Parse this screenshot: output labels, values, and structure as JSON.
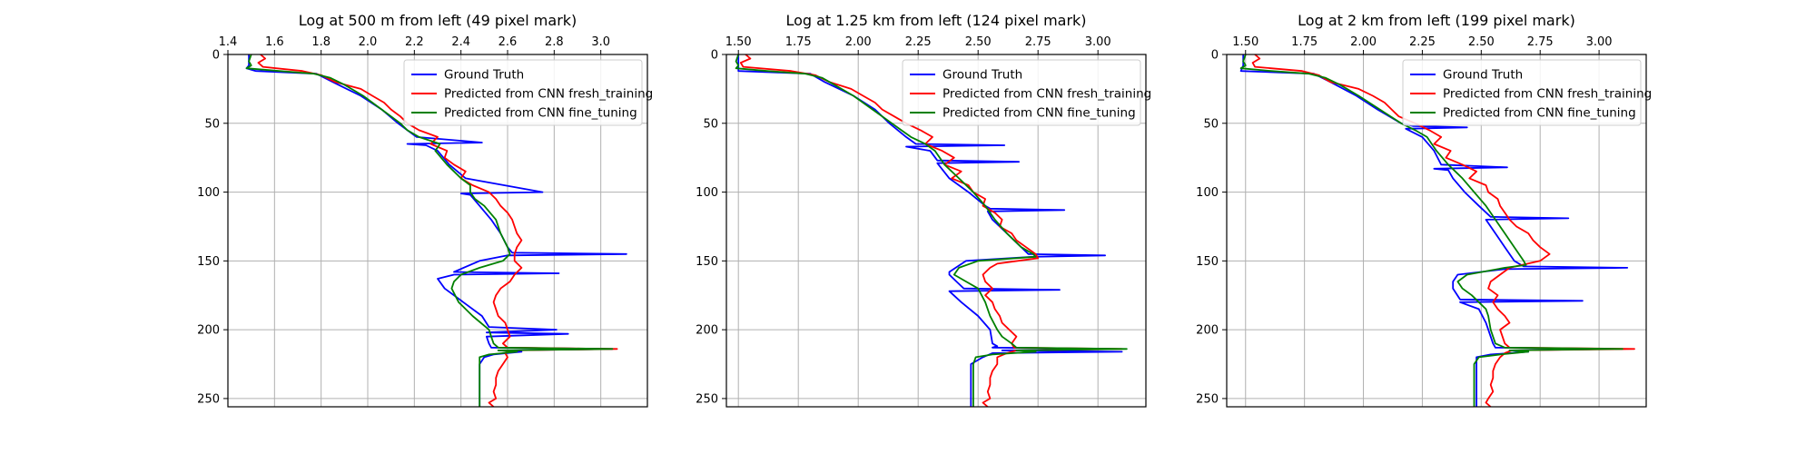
{
  "chart_data": [
    {
      "type": "line",
      "title": "Log at 500 m from left (49 pixel mark)",
      "x_orientation": "top",
      "y_inverted": true,
      "grid": true,
      "legend": "upper right",
      "xlim": [
        1.4,
        3.2
      ],
      "ylim": [
        0,
        256
      ],
      "xticks": [
        1.4,
        1.6,
        1.8,
        2.0,
        2.2,
        2.4,
        2.6,
        2.8,
        3.0
      ],
      "xtick_labels": [
        "1.4",
        "1.6",
        "1.8",
        "2.0",
        "2.2",
        "2.4",
        "2.6",
        "2.8",
        "3.0"
      ],
      "yticks": [
        0,
        50,
        100,
        150,
        200,
        250
      ],
      "ytick_labels": [
        "0",
        "50",
        "100",
        "150",
        "200",
        "250"
      ],
      "series": [
        {
          "name": "Ground Truth",
          "color": "#0000ff",
          "depth": [
            0,
            8,
            10,
            12,
            14,
            20,
            30,
            40,
            50,
            55,
            60,
            64,
            65,
            66,
            70,
            80,
            90,
            100,
            101,
            102,
            110,
            120,
            130,
            140,
            144,
            145,
            146,
            150,
            158,
            159,
            160,
            163,
            170,
            180,
            190,
            198,
            200,
            202,
            203,
            205,
            210,
            213,
            214,
            215,
            216,
            218,
            220,
            225,
            230,
            240,
            250,
            256
          ],
          "value": [
            1.49,
            1.49,
            1.48,
            1.52,
            1.78,
            1.85,
            1.97,
            2.06,
            2.13,
            2.17,
            2.21,
            2.49,
            2.17,
            2.25,
            2.3,
            2.35,
            2.42,
            2.75,
            2.4,
            2.44,
            2.48,
            2.53,
            2.57,
            2.6,
            2.62,
            3.11,
            2.6,
            2.48,
            2.37,
            2.82,
            2.37,
            2.3,
            2.33,
            2.41,
            2.49,
            2.52,
            2.81,
            2.51,
            2.86,
            2.51,
            2.52,
            2.53,
            3.05,
            2.56,
            2.66,
            2.54,
            2.5,
            2.48,
            2.48,
            2.48,
            2.48,
            2.48
          ]
        },
        {
          "name": "Predicted from CNN fresh_training",
          "color": "#ff0000",
          "depth": [
            0,
            3,
            6,
            9,
            12,
            15,
            20,
            25,
            30,
            35,
            40,
            45,
            50,
            55,
            60,
            65,
            70,
            75,
            80,
            85,
            90,
            95,
            100,
            105,
            110,
            115,
            120,
            125,
            130,
            135,
            140,
            145,
            150,
            155,
            160,
            165,
            170,
            175,
            180,
            185,
            190,
            195,
            200,
            205,
            210,
            213,
            214,
            215,
            217,
            220,
            225,
            230,
            235,
            240,
            245,
            250,
            253,
            256
          ],
          "value": [
            1.54,
            1.56,
            1.53,
            1.55,
            1.72,
            1.8,
            1.86,
            1.97,
            2.02,
            2.07,
            2.1,
            2.14,
            2.17,
            2.22,
            2.3,
            2.27,
            2.34,
            2.33,
            2.37,
            2.42,
            2.4,
            2.45,
            2.52,
            2.55,
            2.57,
            2.6,
            2.62,
            2.63,
            2.64,
            2.66,
            2.64,
            2.63,
            2.63,
            2.66,
            2.63,
            2.61,
            2.57,
            2.55,
            2.54,
            2.55,
            2.56,
            2.59,
            2.6,
            2.61,
            2.58,
            2.6,
            3.07,
            2.62,
            2.59,
            2.6,
            2.58,
            2.56,
            2.55,
            2.55,
            2.54,
            2.55,
            2.52,
            2.54
          ]
        },
        {
          "name": "Predicted from CNN fine_tuning",
          "color": "#008000",
          "depth": [
            0,
            5,
            8,
            10,
            12,
            14,
            17,
            22,
            30,
            40,
            50,
            55,
            60,
            65,
            70,
            80,
            90,
            95,
            100,
            105,
            110,
            120,
            130,
            140,
            145,
            150,
            155,
            160,
            165,
            170,
            180,
            190,
            200,
            205,
            210,
            213,
            214,
            215,
            216,
            218,
            220,
            225,
            230,
            240,
            250,
            256
          ],
          "value": [
            1.5,
            1.49,
            1.5,
            1.48,
            1.62,
            1.77,
            1.84,
            1.9,
            1.98,
            2.06,
            2.14,
            2.17,
            2.22,
            2.31,
            2.29,
            2.34,
            2.4,
            2.44,
            2.44,
            2.46,
            2.5,
            2.55,
            2.57,
            2.6,
            2.61,
            2.58,
            2.48,
            2.4,
            2.37,
            2.36,
            2.39,
            2.45,
            2.52,
            2.53,
            2.54,
            2.56,
            3.05,
            2.56,
            2.64,
            2.52,
            2.48,
            2.48,
            2.48,
            2.48,
            2.48,
            2.48
          ]
        }
      ]
    },
    {
      "type": "line",
      "title": "Log at 1.25 km from left (124 pixel mark)",
      "x_orientation": "top",
      "y_inverted": true,
      "grid": true,
      "legend": "upper right",
      "xlim": [
        1.45,
        3.2
      ],
      "ylim": [
        0,
        256
      ],
      "xticks": [
        1.5,
        1.75,
        2.0,
        2.25,
        2.5,
        2.75,
        3.0
      ],
      "xtick_labels": [
        "1.50",
        "1.75",
        "2.00",
        "2.25",
        "2.50",
        "2.75",
        "3.00"
      ],
      "yticks": [
        0,
        50,
        100,
        150,
        200,
        250
      ],
      "ytick_labels": [
        "0",
        "50",
        "100",
        "150",
        "200",
        "250"
      ],
      "series": [
        {
          "name": "Ground Truth",
          "color": "#0000ff",
          "depth": [
            0,
            8,
            12,
            14,
            20,
            30,
            40,
            50,
            60,
            65,
            66,
            67,
            70,
            77,
            78,
            79,
            90,
            100,
            110,
            112,
            113,
            114,
            120,
            130,
            140,
            145,
            146,
            147,
            150,
            158,
            160,
            165,
            170,
            171,
            172,
            180,
            190,
            200,
            210,
            212,
            213,
            214,
            215,
            216,
            217,
            220,
            225,
            230,
            240,
            250,
            256
          ],
          "value": [
            1.5,
            1.5,
            1.5,
            1.8,
            1.86,
            1.98,
            2.07,
            2.13,
            2.2,
            2.24,
            2.61,
            2.2,
            2.3,
            2.33,
            2.67,
            2.33,
            2.38,
            2.46,
            2.53,
            2.55,
            2.86,
            2.54,
            2.56,
            2.62,
            2.68,
            2.71,
            3.03,
            2.73,
            2.45,
            2.38,
            2.38,
            2.41,
            2.44,
            2.84,
            2.38,
            2.43,
            2.5,
            2.55,
            2.56,
            2.58,
            2.56,
            3.05,
            2.6,
            3.1,
            2.56,
            2.52,
            2.47,
            2.47,
            2.47,
            2.47,
            2.47
          ]
        },
        {
          "name": "Predicted from CNN fresh_training",
          "color": "#ff0000",
          "depth": [
            0,
            3,
            6,
            9,
            12,
            15,
            20,
            25,
            30,
            35,
            40,
            45,
            50,
            55,
            60,
            65,
            70,
            75,
            80,
            85,
            90,
            95,
            100,
            105,
            110,
            115,
            120,
            125,
            130,
            135,
            140,
            145,
            148,
            152,
            155,
            160,
            165,
            170,
            175,
            180,
            185,
            190,
            195,
            200,
            205,
            210,
            213,
            214,
            215,
            217,
            220,
            225,
            230,
            235,
            240,
            245,
            250,
            253,
            256
          ],
          "value": [
            1.53,
            1.55,
            1.51,
            1.52,
            1.72,
            1.82,
            1.88,
            1.97,
            2.02,
            2.07,
            2.1,
            2.15,
            2.2,
            2.26,
            2.31,
            2.28,
            2.35,
            2.4,
            2.36,
            2.43,
            2.39,
            2.46,
            2.48,
            2.53,
            2.52,
            2.57,
            2.6,
            2.59,
            2.64,
            2.66,
            2.7,
            2.74,
            2.75,
            2.58,
            2.55,
            2.52,
            2.53,
            2.56,
            2.53,
            2.56,
            2.57,
            2.59,
            2.6,
            2.63,
            2.66,
            2.64,
            2.65,
            3.1,
            2.66,
            2.62,
            2.58,
            2.58,
            2.56,
            2.55,
            2.55,
            2.54,
            2.55,
            2.52,
            2.54
          ]
        },
        {
          "name": "Predicted from CNN fine_tuning",
          "color": "#008000",
          "depth": [
            0,
            5,
            8,
            10,
            12,
            14,
            17,
            22,
            30,
            40,
            50,
            55,
            60,
            65,
            70,
            80,
            90,
            100,
            110,
            120,
            130,
            140,
            145,
            147,
            150,
            155,
            160,
            165,
            170,
            180,
            190,
            200,
            205,
            210,
            213,
            214,
            215,
            216,
            218,
            220,
            225,
            230,
            240,
            250,
            256
          ],
          "value": [
            1.5,
            1.49,
            1.5,
            1.49,
            1.62,
            1.78,
            1.85,
            1.9,
            1.98,
            2.06,
            2.14,
            2.18,
            2.22,
            2.28,
            2.32,
            2.36,
            2.42,
            2.48,
            2.53,
            2.57,
            2.62,
            2.68,
            2.73,
            2.74,
            2.5,
            2.42,
            2.4,
            2.45,
            2.5,
            2.53,
            2.55,
            2.58,
            2.6,
            2.64,
            2.66,
            3.12,
            2.66,
            2.74,
            2.56,
            2.49,
            2.48,
            2.48,
            2.48,
            2.48,
            2.48
          ]
        }
      ]
    },
    {
      "type": "line",
      "title": "Log at 2 km from left (199 pixel mark)",
      "x_orientation": "top",
      "y_inverted": true,
      "grid": true,
      "legend": "upper right",
      "xlim": [
        1.42,
        3.2
      ],
      "ylim": [
        0,
        256
      ],
      "xticks": [
        1.5,
        1.75,
        2.0,
        2.25,
        2.5,
        2.75,
        3.0
      ],
      "xtick_labels": [
        "1.50",
        "1.75",
        "2.00",
        "2.25",
        "2.50",
        "2.75",
        "3.00"
      ],
      "yticks": [
        0,
        50,
        100,
        150,
        200,
        250
      ],
      "ytick_labels": [
        "0",
        "50",
        "100",
        "150",
        "200",
        "250"
      ],
      "series": [
        {
          "name": "Ground Truth",
          "color": "#0000ff",
          "depth": [
            0,
            8,
            12,
            14,
            20,
            30,
            40,
            50,
            52,
            53,
            54,
            60,
            70,
            80,
            82,
            83,
            84,
            90,
            100,
            110,
            118,
            119,
            120,
            130,
            140,
            150,
            154,
            155,
            156,
            160,
            165,
            170,
            178,
            179,
            180,
            185,
            195,
            200,
            210,
            213,
            214,
            215,
            216,
            218,
            220,
            225,
            230,
            240,
            250,
            256
          ],
          "value": [
            1.49,
            1.49,
            1.48,
            1.79,
            1.86,
            1.97,
            2.06,
            2.16,
            2.21,
            2.44,
            2.18,
            2.25,
            2.3,
            2.33,
            2.61,
            2.3,
            2.36,
            2.38,
            2.43,
            2.49,
            2.54,
            2.87,
            2.52,
            2.56,
            2.6,
            2.64,
            2.68,
            3.12,
            2.6,
            2.4,
            2.38,
            2.38,
            2.41,
            2.93,
            2.41,
            2.49,
            2.52,
            2.53,
            2.55,
            2.56,
            3.05,
            2.62,
            2.7,
            2.54,
            2.48,
            2.48,
            2.48,
            2.48,
            2.48,
            2.48
          ]
        },
        {
          "name": "Predicted from CNN fresh_training",
          "color": "#ff0000",
          "depth": [
            0,
            3,
            6,
            9,
            12,
            15,
            20,
            25,
            30,
            35,
            40,
            45,
            50,
            55,
            60,
            65,
            70,
            75,
            80,
            85,
            90,
            95,
            100,
            105,
            110,
            115,
            120,
            125,
            130,
            135,
            140,
            145,
            150,
            155,
            160,
            165,
            170,
            175,
            180,
            185,
            190,
            195,
            200,
            205,
            210,
            213,
            214,
            215,
            217,
            220,
            225,
            230,
            235,
            240,
            245,
            250,
            253,
            256
          ],
          "value": [
            1.54,
            1.56,
            1.53,
            1.54,
            1.74,
            1.81,
            1.86,
            1.98,
            2.04,
            2.09,
            2.12,
            2.15,
            2.22,
            2.28,
            2.33,
            2.3,
            2.37,
            2.35,
            2.42,
            2.48,
            2.45,
            2.52,
            2.53,
            2.57,
            2.58,
            2.6,
            2.62,
            2.65,
            2.7,
            2.72,
            2.75,
            2.79,
            2.75,
            2.62,
            2.58,
            2.54,
            2.53,
            2.57,
            2.55,
            2.57,
            2.6,
            2.62,
            2.58,
            2.59,
            2.6,
            2.62,
            3.15,
            2.63,
            2.6,
            2.58,
            2.56,
            2.55,
            2.55,
            2.54,
            2.55,
            2.53,
            2.52,
            2.54
          ]
        },
        {
          "name": "Predicted from CNN fine_tuning",
          "color": "#008000",
          "depth": [
            0,
            5,
            8,
            10,
            12,
            14,
            17,
            22,
            30,
            40,
            50,
            55,
            60,
            70,
            80,
            90,
            100,
            110,
            120,
            130,
            140,
            150,
            153,
            155,
            160,
            165,
            170,
            175,
            180,
            185,
            190,
            200,
            205,
            210,
            213,
            214,
            215,
            216,
            218,
            220,
            225,
            230,
            240,
            250,
            256
          ],
          "value": [
            1.5,
            1.49,
            1.5,
            1.48,
            1.61,
            1.77,
            1.84,
            1.9,
            1.98,
            2.07,
            2.16,
            2.22,
            2.27,
            2.31,
            2.36,
            2.42,
            2.47,
            2.52,
            2.56,
            2.6,
            2.64,
            2.68,
            2.69,
            2.6,
            2.44,
            2.4,
            2.42,
            2.46,
            2.49,
            2.52,
            2.53,
            2.54,
            2.55,
            2.56,
            2.6,
            3.1,
            2.62,
            2.7,
            2.58,
            2.49,
            2.47,
            2.47,
            2.47,
            2.47,
            2.47
          ]
        }
      ]
    }
  ]
}
